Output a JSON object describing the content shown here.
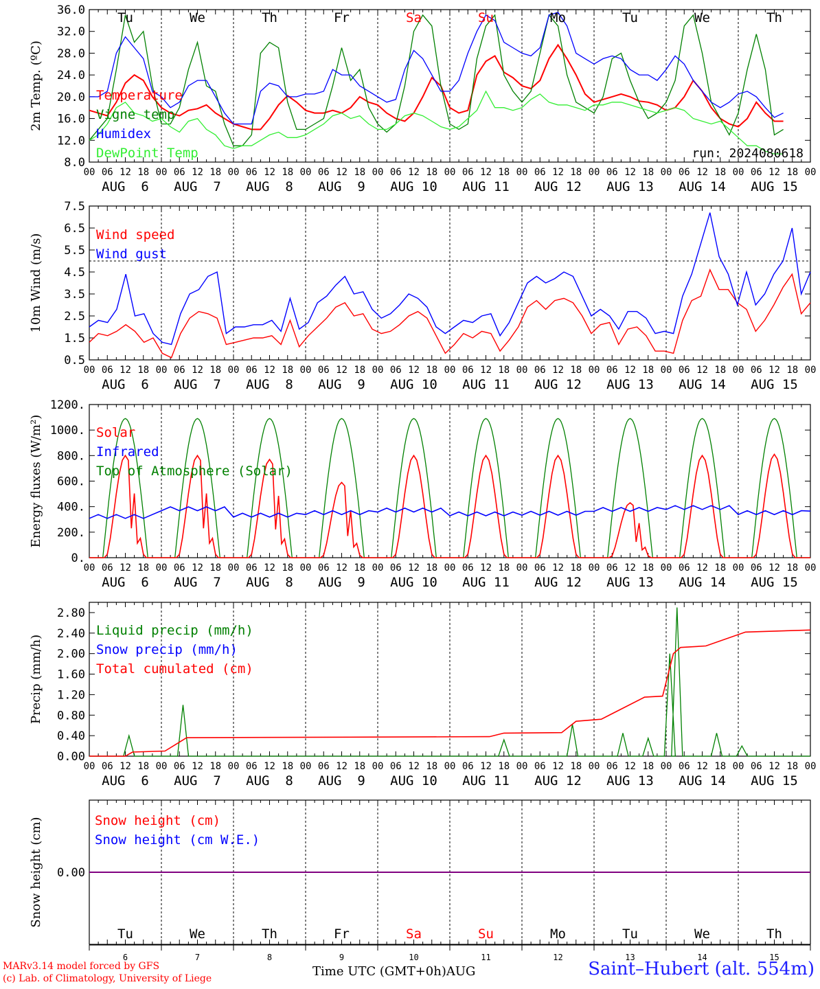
{
  "colors": {
    "red": "#ff0000",
    "green": "#008000",
    "blue": "#0000ff",
    "lightgreen": "#33ee33",
    "purple": "#800080",
    "black": "#000000"
  },
  "run_label": "run: 2024080618",
  "station": "Saint–Hubert (alt. 554m)",
  "footer": {
    "line1": "MARv3.14 model forced by GFS",
    "line2": "(c) Lab. of Climatology, University of Liege",
    "time_label": "Time UTC (GMT+0h)",
    "month_label": "AUG"
  },
  "hour_ticks": [
    "00",
    "06",
    "12",
    "18"
  ],
  "day_labels": [
    "AUG  6",
    "AUG  7",
    "AUG  8",
    "AUG  9",
    "AUG 10",
    "AUG 11",
    "AUG 12",
    "AUG 13",
    "AUG 14",
    "AUG 15"
  ],
  "weekdays": [
    {
      "label": "Tu",
      "weekend": false
    },
    {
      "label": "We",
      "weekend": false
    },
    {
      "label": "Th",
      "weekend": false
    },
    {
      "label": "Fr",
      "weekend": false
    },
    {
      "label": "Sa",
      "weekend": true
    },
    {
      "label": "Su",
      "weekend": true
    },
    {
      "label": "Mo",
      "weekend": false
    },
    {
      "label": "Tu",
      "weekend": false
    },
    {
      "label": "We",
      "weekend": false
    },
    {
      "label": "Th",
      "weekend": false
    }
  ],
  "day_numbers": [
    "6",
    "7",
    "8",
    "9",
    "10",
    "11",
    "12",
    "13",
    "14",
    "15"
  ],
  "chart_data": [
    {
      "type": "line",
      "ylabel": "2m Temp. (ºC)",
      "ylim": [
        8,
        36
      ],
      "yticks": [
        "8.0",
        "12.0",
        "16.0",
        "20.0",
        "24.0",
        "28.0",
        "32.0",
        "36.0"
      ],
      "x": "hours since Aug 6 00 UTC (every 3h)",
      "series": [
        {
          "name": "Temperature",
          "color": "red",
          "values": [
            17.5,
            17,
            16.5,
            19,
            22.5,
            24,
            23,
            20,
            18,
            17,
            16.5,
            17.5,
            17.8,
            18.5,
            17,
            16,
            15,
            14.5,
            14,
            14,
            16,
            18.5,
            20.2,
            19,
            17.5,
            17,
            17,
            17.5,
            17,
            18,
            20,
            19,
            18.5,
            17,
            16,
            15.5,
            17,
            20,
            23.5,
            22,
            18,
            17,
            17.5,
            24,
            26.5,
            27.5,
            24.5,
            23.5,
            22,
            21.5,
            23,
            27,
            29.5,
            27,
            24,
            20.5,
            19,
            19.5,
            20,
            20.5,
            20,
            19.2,
            19,
            18.5,
            17.5,
            18,
            20,
            23,
            21,
            18,
            16,
            15,
            14.5,
            16,
            19,
            17,
            15.5,
            15.5
          ]
        },
        {
          "name": "Vigne temp",
          "color": "green",
          "values": [
            12,
            14,
            16,
            25,
            35,
            30,
            32,
            22,
            15,
            15,
            18,
            25,
            30,
            22,
            21,
            15,
            11,
            11,
            13,
            28,
            30,
            29,
            19,
            14,
            14,
            15,
            16,
            22,
            29,
            23,
            25,
            18,
            15,
            13.5,
            15,
            22,
            32,
            35,
            33,
            22,
            15,
            14,
            15,
            27,
            33,
            35,
            24,
            21,
            19,
            21,
            28,
            35,
            33,
            24,
            19,
            18,
            17,
            20,
            27,
            28,
            23,
            19,
            16,
            17,
            19,
            23,
            33,
            35,
            28,
            19,
            16,
            13,
            17,
            25,
            31.5,
            25,
            13,
            14
          ]
        },
        {
          "name": "Humidex",
          "color": "blue",
          "values": [
            20,
            20,
            21,
            28,
            31,
            29,
            27,
            21,
            20,
            18,
            19,
            22,
            23,
            23,
            20,
            17,
            15,
            15,
            15,
            21,
            22.5,
            22,
            20,
            20,
            20.5,
            20.5,
            21,
            25,
            24,
            24,
            22,
            21,
            20,
            19,
            19.5,
            25,
            28.5,
            27,
            24,
            21,
            21,
            23,
            28,
            32,
            35,
            34,
            30,
            29,
            28,
            27.5,
            29,
            35,
            35.5,
            33,
            28,
            27,
            26,
            27,
            27.5,
            27,
            25,
            24,
            24,
            23,
            25,
            27.5,
            26,
            23,
            21,
            19,
            18,
            19,
            20.5,
            21,
            20,
            18,
            16.2,
            17
          ]
        },
        {
          "name": "DewPoint Temp",
          "color": "lightgreen",
          "values": [
            12,
            13,
            15,
            18,
            19,
            17,
            16.5,
            15.5,
            16,
            14.5,
            13.5,
            15.5,
            16,
            14,
            13,
            11,
            10.5,
            11,
            11,
            12,
            13,
            13.5,
            12.5,
            12.5,
            13,
            14,
            15,
            16.5,
            17,
            16,
            16.5,
            15,
            14,
            14,
            15,
            16.5,
            17,
            16.5,
            15.5,
            14.5,
            14,
            14.5,
            16,
            17.5,
            21,
            18,
            18,
            17.5,
            18,
            19.5,
            20.5,
            19,
            18.5,
            18.5,
            18,
            17.5,
            18.5,
            18.5,
            19,
            19,
            18.5,
            18,
            17.5,
            17,
            17.5,
            18,
            17.5,
            16,
            15.5,
            15,
            15.5,
            14,
            12.5,
            11,
            11,
            10,
            9.5,
            9.5
          ]
        }
      ]
    },
    {
      "type": "line",
      "ylabel": "10m Wind (m/s)",
      "ylim": [
        0.5,
        7.5
      ],
      "yticks": [
        "0.5",
        "1.5",
        "2.5",
        "3.5",
        "4.5",
        "5.5",
        "6.5",
        "7.5"
      ],
      "dashed_level": 5.0,
      "series": [
        {
          "name": "Wind speed",
          "color": "red",
          "values": [
            1.3,
            1.7,
            1.6,
            1.8,
            2.1,
            1.8,
            1.3,
            1.5,
            0.8,
            0.6,
            1.7,
            2.4,
            2.7,
            2.6,
            2.4,
            1.2,
            1.3,
            1.4,
            1.5,
            1.5,
            1.6,
            1.2,
            2.3,
            1.1,
            1.6,
            2.0,
            2.4,
            2.9,
            3.1,
            2.5,
            2.6,
            1.9,
            1.7,
            1.8,
            2.1,
            2.5,
            2.7,
            2.4,
            1.6,
            0.8,
            1.2,
            1.7,
            1.5,
            1.8,
            1.7,
            0.9,
            1.4,
            2.0,
            2.9,
            3.2,
            2.8,
            3.2,
            3.3,
            3.1,
            2.5,
            1.7,
            2.1,
            2.2,
            1.2,
            1.9,
            2.0,
            1.6,
            0.9,
            0.9,
            0.8,
            2.3,
            3.2,
            3.4,
            4.6,
            3.7,
            3.7,
            3.1,
            2.8,
            1.8,
            2.3,
            3.0,
            3.8,
            4.4,
            2.6,
            3.1
          ]
        },
        {
          "name": "Wind gust",
          "color": "blue",
          "values": [
            2.0,
            2.3,
            2.2,
            2.8,
            4.4,
            2.5,
            2.6,
            1.7,
            1.3,
            1.2,
            2.6,
            3.5,
            3.7,
            4.3,
            4.5,
            1.7,
            2.0,
            2.0,
            2.1,
            2.1,
            2.3,
            1.8,
            3.3,
            1.9,
            2.2,
            3.1,
            3.4,
            3.9,
            4.3,
            3.5,
            3.6,
            2.8,
            2.4,
            2.6,
            3.0,
            3.5,
            3.3,
            2.9,
            2.0,
            1.7,
            2.0,
            2.3,
            2.2,
            2.5,
            2.6,
            1.6,
            2.2,
            3.1,
            4.0,
            4.3,
            4.0,
            4.2,
            4.5,
            4.3,
            3.4,
            2.5,
            2.8,
            2.5,
            1.9,
            2.7,
            2.7,
            2.4,
            1.7,
            1.8,
            1.7,
            3.4,
            4.4,
            5.8,
            7.2,
            5.2,
            4.4,
            3.0,
            4.5,
            3.0,
            3.5,
            4.4,
            5.0,
            6.5,
            3.5,
            4.5
          ]
        }
      ]
    },
    {
      "type": "line",
      "ylabel": "Energy fluxes (W/m²)",
      "ylim": [
        0,
        1200
      ],
      "yticks": [
        "0.",
        "200.",
        "400.",
        "600.",
        "800.",
        "1000.",
        "1200."
      ],
      "series": [
        {
          "name": "Solar",
          "color": "red",
          "peaks": [
            800,
            800,
            770,
            590,
            800,
            800,
            800,
            430,
            800,
            810
          ]
        },
        {
          "name": "Infrared",
          "color": "blue",
          "base": [
            320,
            380,
            330,
            350,
            370,
            340,
            345,
            375,
            390,
            350
          ]
        },
        {
          "name": "Top of Atmosphere (Solar)",
          "color": "green",
          "peak": 1090
        }
      ]
    },
    {
      "type": "line",
      "ylabel": "Precip (mm/h)",
      "ylim": [
        0,
        3.0
      ],
      "yticks": [
        "0.00",
        "0.40",
        "0.80",
        "1.20",
        "1.60",
        "2.00",
        "2.40",
        "2.80"
      ],
      "series": [
        {
          "name": "Liquid precip (mm/h)",
          "color": "green",
          "events": [
            [
              0.55,
              0.4
            ],
            [
              1.3,
              1.0
            ],
            [
              5.75,
              0.32
            ],
            [
              6.7,
              0.62
            ],
            [
              7.4,
              0.45
            ],
            [
              7.75,
              0.35
            ],
            [
              8.15,
              2.9
            ],
            [
              8.05,
              2.0
            ],
            [
              8.7,
              0.45
            ],
            [
              9.05,
              0.2
            ]
          ]
        },
        {
          "name": "Snow precip (mm/h)",
          "color": "blue",
          "events": []
        },
        {
          "name": "Total cumulated (cm)",
          "color": "red",
          "values": [
            [
              0,
              0
            ],
            [
              0.5,
              0
            ],
            [
              0.6,
              0.08
            ],
            [
              1.05,
              0.1
            ],
            [
              1.35,
              0.36
            ],
            [
              5.55,
              0.38
            ],
            [
              5.75,
              0.45
            ],
            [
              6.55,
              0.46
            ],
            [
              6.75,
              0.68
            ],
            [
              7.1,
              0.72
            ],
            [
              7.7,
              1.15
            ],
            [
              7.95,
              1.17
            ],
            [
              8.1,
              2.0
            ],
            [
              8.2,
              2.12
            ],
            [
              8.55,
              2.15
            ],
            [
              9.1,
              2.42
            ],
            [
              10,
              2.46
            ]
          ]
        }
      ]
    },
    {
      "type": "line",
      "ylabel": "Snow height (cm)",
      "ylim": [
        -1,
        1
      ],
      "yticks": [
        "0.00"
      ],
      "series": [
        {
          "name": "Snow height (cm)",
          "color": "red",
          "values": [
            0,
            0
          ]
        },
        {
          "name": "Snow height (cm W.E.)",
          "color": "blue",
          "values": [
            0,
            0
          ]
        }
      ]
    }
  ]
}
